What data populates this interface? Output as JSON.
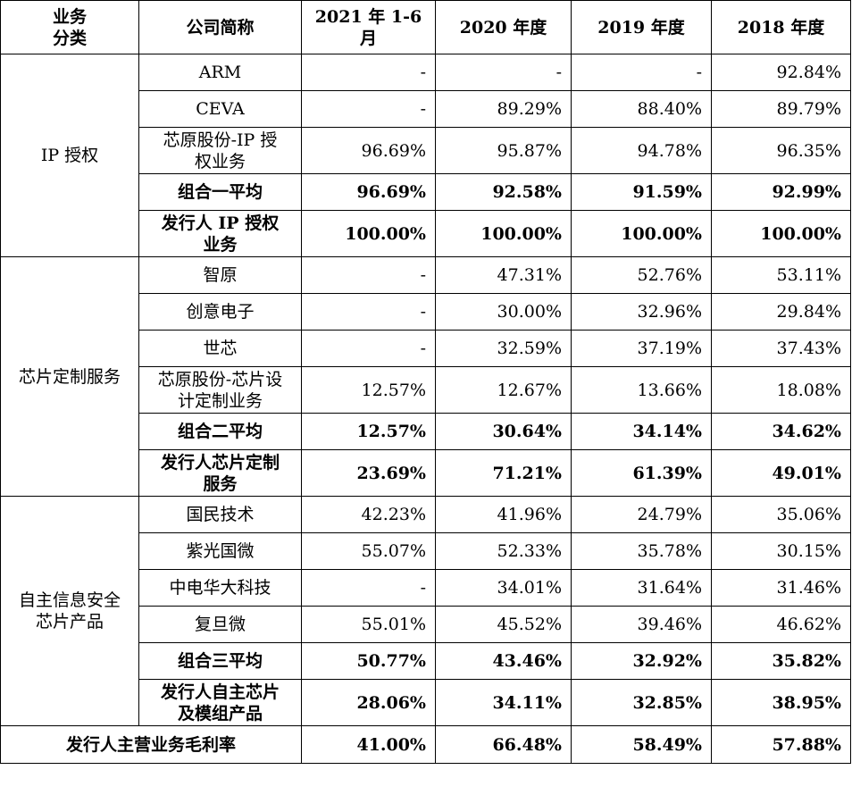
{
  "headers": [
    "业务\n分类",
    "公司简称",
    "2021 年 1-6\n月",
    "2020 年度",
    "2019 年度",
    "2018 年度"
  ],
  "groups": [
    {
      "category": "IP 授权",
      "rows": [
        {
          "name": "ARM",
          "values": [
            "-",
            "-",
            "-",
            "92.84%"
          ]
        },
        {
          "name": "CEVA",
          "values": [
            "-",
            "89.29%",
            "88.40%",
            "89.79%"
          ]
        },
        {
          "name": "芯原股份-IP 授\n权业务",
          "values": [
            "96.69%",
            "95.87%",
            "94.78%",
            "96.35%"
          ]
        },
        {
          "name": "组合一平均",
          "values": [
            "96.69%",
            "92.58%",
            "91.59%",
            "92.99%"
          ]
        },
        {
          "name": "发行人 IP 授权\n业务",
          "values": [
            "100.00%",
            "100.00%",
            "100.00%",
            "100.00%"
          ]
        }
      ]
    },
    {
      "category": "芯片定制服务",
      "rows": [
        {
          "name": "智原",
          "values": [
            "-",
            "47.31%",
            "52.76%",
            "53.11%"
          ]
        },
        {
          "name": "创意电子",
          "values": [
            "-",
            "30.00%",
            "32.96%",
            "29.84%"
          ]
        },
        {
          "name": "世芯",
          "values": [
            "-",
            "32.59%",
            "37.19%",
            "37.43%"
          ]
        },
        {
          "name": "芯原股份-芯片设\n计定制业务",
          "values": [
            "12.57%",
            "12.67%",
            "13.66%",
            "18.08%"
          ]
        },
        {
          "name": "组合二平均",
          "values": [
            "12.57%",
            "30.64%",
            "34.14%",
            "34.62%"
          ]
        },
        {
          "name": "发行人芯片定制\n服务",
          "values": [
            "23.69%",
            "71.21%",
            "61.39%",
            "49.01%"
          ]
        }
      ]
    },
    {
      "category": "自主信息安全\n芯片产品",
      "rows": [
        {
          "name": "国民技术",
          "values": [
            "42.23%",
            "41.96%",
            "24.79%",
            "35.06%"
          ]
        },
        {
          "name": "紫光国微",
          "values": [
            "55.07%",
            "52.33%",
            "35.78%",
            "30.15%"
          ]
        },
        {
          "name": "中电华大科技",
          "values": [
            "-",
            "34.01%",
            "31.64%",
            "31.46%"
          ]
        },
        {
          "name": "复旦微",
          "values": [
            "55.01%",
            "45.52%",
            "39.46%",
            "46.62%"
          ]
        },
        {
          "name": "组合三平均",
          "values": [
            "50.77%",
            "43.46%",
            "32.92%",
            "35.82%"
          ]
        },
        {
          "name": "发行人自主芯片\n及模组产品",
          "values": [
            "28.06%",
            "34.11%",
            "32.85%",
            "38.95%"
          ]
        }
      ]
    }
  ],
  "total": {
    "label": "发行人主营业务毛利率",
    "values": [
      "41.00%",
      "66.48%",
      "58.49%",
      "57.88%"
    ]
  }
}
